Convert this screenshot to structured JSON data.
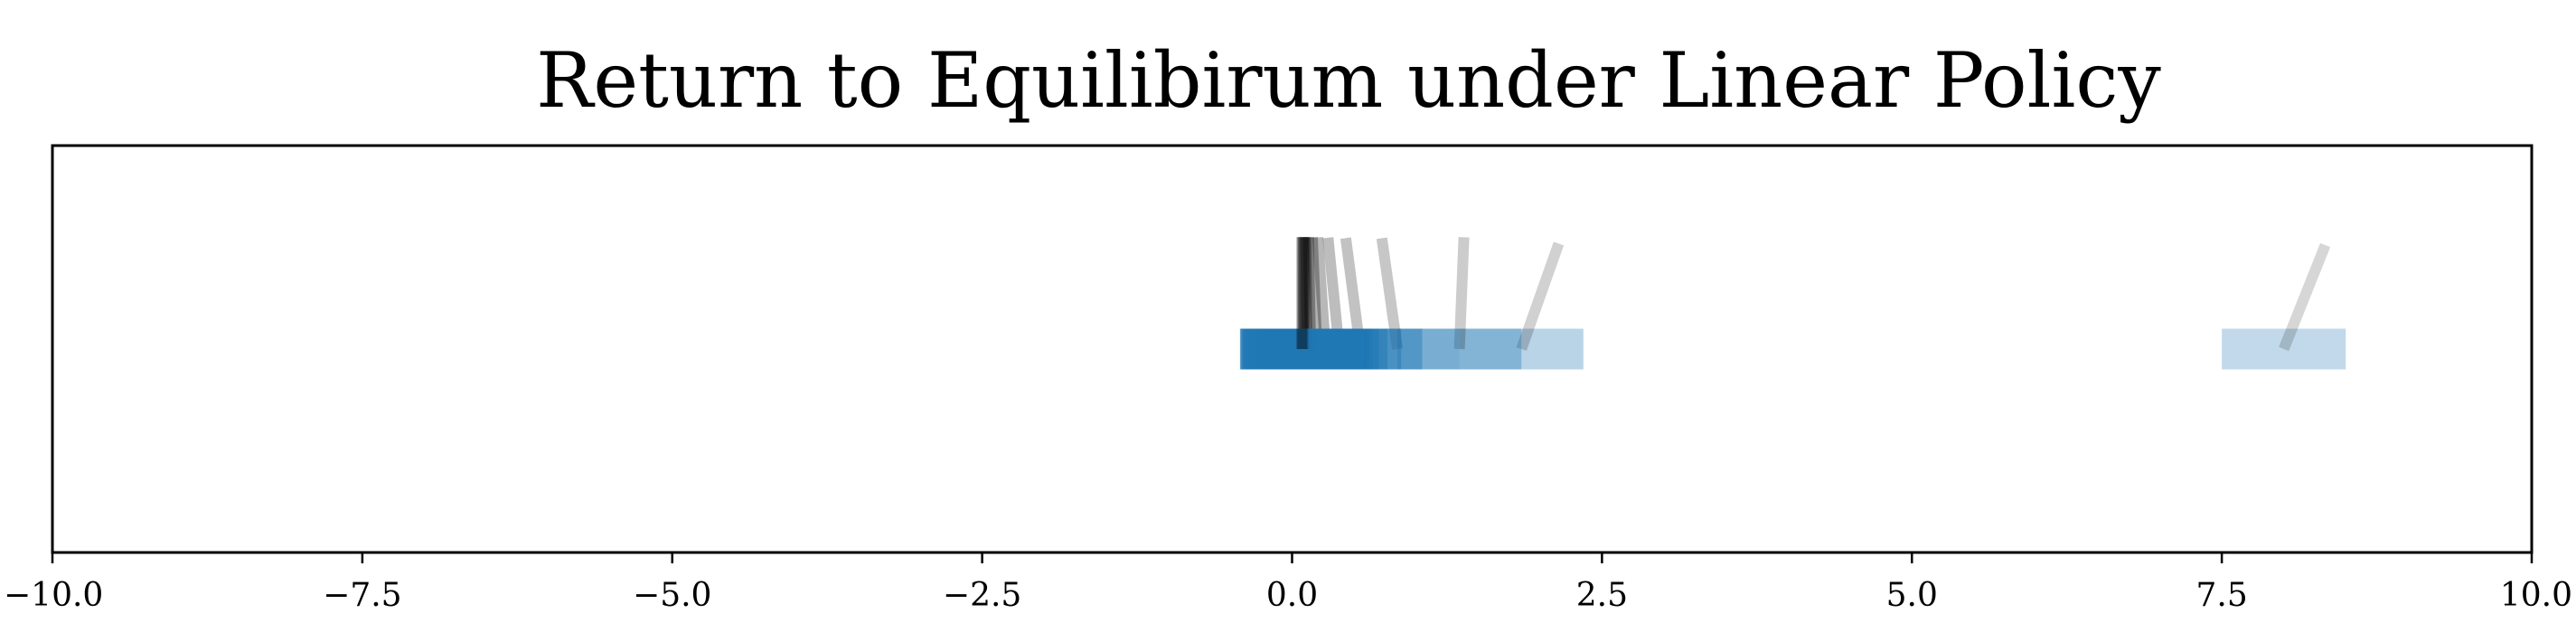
{
  "chart_data": {
    "type": "scatter",
    "title": "Return to Equilibirum under Linear Policy",
    "xlabel": "",
    "ylabel": "",
    "xlim": [
      -10.0,
      10.0
    ],
    "ylim": [
      -1.0,
      1.0
    ],
    "grid": false,
    "y_ticks_shown": false,
    "x_ticks": [
      -10.0,
      -7.5,
      -5.0,
      -2.5,
      0.0,
      2.5,
      5.0,
      7.5,
      10.0
    ],
    "x_tick_labels": [
      "−10.0",
      "−7.5",
      "−5.0",
      "−2.5",
      "0.0",
      "2.5",
      "5.0",
      "7.5",
      "10.0"
    ],
    "cart": {
      "width": 1.0,
      "height": 0.2,
      "color": "#1f77b4"
    },
    "pole": {
      "length": 0.55,
      "color": "#000000"
    },
    "frames": [
      {
        "x": 8.0,
        "theta": 0.38,
        "alpha": 0.4
      },
      {
        "x": 1.85,
        "theta": 0.34,
        "alpha": 0.45
      },
      {
        "x": 1.35,
        "theta": 0.04,
        "alpha": 0.5
      },
      {
        "x": 0.85,
        "theta": -0.14,
        "alpha": 0.55
      },
      {
        "x": 0.55,
        "theta": -0.13,
        "alpha": 0.6
      },
      {
        "x": 0.38,
        "theta": -0.1,
        "alpha": 0.65
      },
      {
        "x": 0.27,
        "theta": -0.07,
        "alpha": 0.7
      },
      {
        "x": 0.2,
        "theta": -0.04,
        "alpha": 0.75
      },
      {
        "x": 0.15,
        "theta": -0.02,
        "alpha": 0.8
      },
      {
        "x": 0.12,
        "theta": -0.01,
        "alpha": 0.85
      },
      {
        "x": 0.1,
        "theta": 0.0,
        "alpha": 0.9
      },
      {
        "x": 0.09,
        "theta": 0.0,
        "alpha": 0.95
      },
      {
        "x": 0.08,
        "theta": 0.0,
        "alpha": 1.0
      }
    ]
  }
}
